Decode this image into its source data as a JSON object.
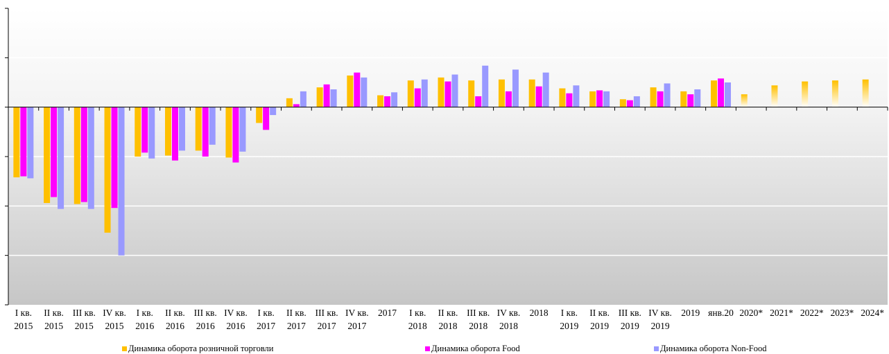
{
  "chart_data": {
    "type": "bar",
    "categories": [
      "I кв.\n2015",
      "II кв.\n2015",
      "III кв.\n2015",
      "IV кв.\n2015",
      "I кв.\n2016",
      "II кв.\n2016",
      "III кв.\n2016",
      "IV кв.\n2016",
      "I кв.\n2017",
      "II кв.\n2017",
      "III кв.\n2017",
      "IV кв.\n2017",
      "2017",
      "I кв.\n2018",
      "II кв.\n2018",
      "III кв.\n2018",
      "IV кв.\n2018",
      "2018",
      "I кв.\n2019",
      "II кв.\n2019",
      "III кв.\n2019",
      "IV кв.\n2019",
      "2019",
      "янв.20",
      "2020*",
      "2021*",
      "2022*",
      "2023*",
      "2024*"
    ],
    "series": [
      {
        "name": "Динамика оборота розничной торговли",
        "color": "#FFC000",
        "values": [
          -7.1,
          -9.7,
          -9.8,
          -12.7,
          -5.0,
          -4.9,
          -4.4,
          -5.1,
          -1.6,
          0.9,
          2.0,
          3.2,
          1.2,
          2.7,
          3.0,
          2.7,
          2.8,
          2.8,
          1.9,
          1.6,
          0.8,
          2.0,
          1.6,
          2.7,
          1.3,
          2.2,
          2.6,
          2.7,
          2.8
        ]
      },
      {
        "name": "Динамика оборота Food",
        "color": "#FF00FF",
        "values": [
          -7.0,
          -9.1,
          -9.6,
          -10.2,
          -4.6,
          -5.4,
          -5.0,
          -5.6,
          -2.3,
          0.3,
          2.3,
          3.5,
          1.1,
          1.9,
          2.6,
          1.1,
          1.6,
          2.1,
          1.4,
          1.7,
          0.7,
          1.6,
          1.3,
          2.9,
          null,
          null,
          null,
          null,
          null
        ]
      },
      {
        "name": "Динамика оборота Non-Food",
        "color": "#9999FF",
        "values": [
          -7.2,
          -10.3,
          -10.3,
          -15.0,
          -5.2,
          -4.4,
          -3.8,
          -4.5,
          -0.8,
          1.6,
          1.8,
          3.0,
          1.5,
          2.8,
          3.3,
          4.2,
          3.8,
          3.5,
          2.2,
          1.6,
          1.1,
          2.4,
          1.8,
          2.5,
          null,
          null,
          null,
          null,
          null
        ]
      }
    ],
    "ylim": [
      -20,
      10
    ],
    "y_gridlines": [
      -15,
      -10,
      -5,
      5
    ],
    "y_tick_labels_visible": false,
    "grid": true,
    "background": "gradient white-to-gray",
    "forecast_bars_style": "gradient fill (2020*–2024*)",
    "legend_position": "bottom"
  }
}
